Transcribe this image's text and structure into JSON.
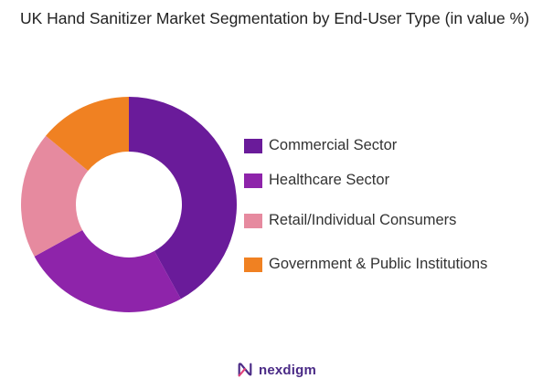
{
  "title": "UK Hand Sanitizer Market Segmentation by End-User Type (in value %)",
  "chart_data": {
    "type": "pie",
    "variant": "donut",
    "categories": [
      "Commercial Sector",
      "Healthcare Sector",
      "Retail/Individual Consumers",
      "Government & Public Institutions"
    ],
    "values": [
      42,
      25,
      19,
      14
    ],
    "colors": [
      "#6a1b9a",
      "#8e24aa",
      "#e68a9f",
      "#f08122"
    ],
    "legend_position": "right",
    "start": "top, clockwise"
  },
  "brand": {
    "name": "nexdigm",
    "color": "#4a2a86",
    "icon": "nexdigm-logo-icon"
  }
}
